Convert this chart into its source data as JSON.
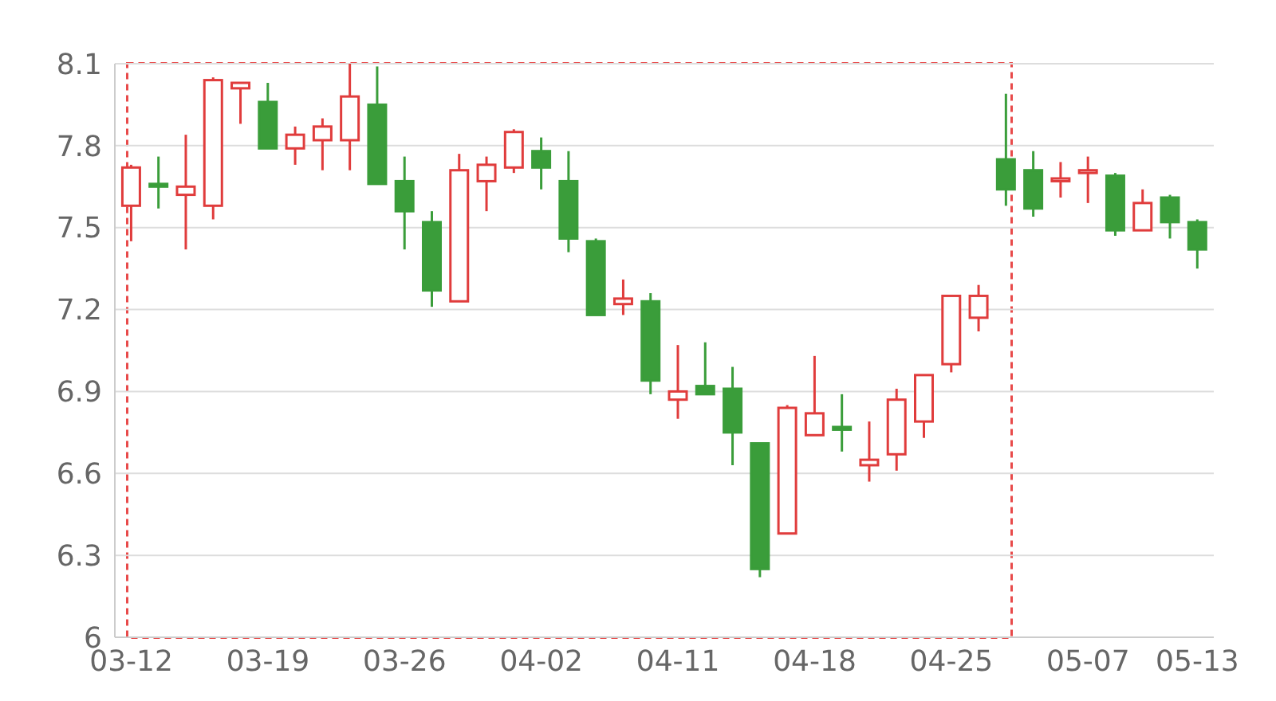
{
  "chart_data": {
    "type": "candlestick",
    "categories": [
      "03-12",
      null,
      null,
      null,
      null,
      "03-19",
      null,
      null,
      null,
      null,
      "03-26",
      null,
      null,
      null,
      null,
      "04-02",
      null,
      null,
      null,
      null,
      "04-11",
      null,
      null,
      null,
      null,
      "04-18",
      null,
      null,
      null,
      null,
      "04-25",
      null,
      null,
      null,
      null,
      "05-07",
      null,
      null,
      null,
      "05-13"
    ],
    "ohlc": [
      [
        7.58,
        7.73,
        7.45,
        7.72
      ],
      [
        7.66,
        7.76,
        7.57,
        7.65
      ],
      [
        7.62,
        7.84,
        7.42,
        7.65
      ],
      [
        7.58,
        8.05,
        7.53,
        8.04
      ],
      [
        8.01,
        8.03,
        7.88,
        8.03
      ],
      [
        7.96,
        8.03,
        7.79,
        7.79
      ],
      [
        7.79,
        7.87,
        7.73,
        7.84
      ],
      [
        7.82,
        7.9,
        7.71,
        7.87
      ],
      [
        7.82,
        8.1,
        7.71,
        7.98
      ],
      [
        7.95,
        8.09,
        7.66,
        7.66
      ],
      [
        7.67,
        7.76,
        7.42,
        7.56
      ],
      [
        7.52,
        7.56,
        7.21,
        7.27
      ],
      [
        7.23,
        7.77,
        7.23,
        7.71
      ],
      [
        7.67,
        7.76,
        7.56,
        7.73
      ],
      [
        7.72,
        7.86,
        7.7,
        7.85
      ],
      [
        7.78,
        7.83,
        7.64,
        7.72
      ],
      [
        7.67,
        7.78,
        7.41,
        7.46
      ],
      [
        7.45,
        7.46,
        7.18,
        7.18
      ],
      [
        7.22,
        7.31,
        7.18,
        7.24
      ],
      [
        7.23,
        7.26,
        6.89,
        6.94
      ],
      [
        6.87,
        7.07,
        6.8,
        6.9
      ],
      [
        6.92,
        7.08,
        6.89,
        6.89
      ],
      [
        6.91,
        6.99,
        6.63,
        6.75
      ],
      [
        6.71,
        6.71,
        6.22,
        6.25
      ],
      [
        6.38,
        6.85,
        6.38,
        6.84
      ],
      [
        6.74,
        7.03,
        6.74,
        6.82
      ],
      [
        6.77,
        6.89,
        6.68,
        6.76
      ],
      [
        6.63,
        6.79,
        6.57,
        6.65
      ],
      [
        6.67,
        6.91,
        6.61,
        6.87
      ],
      [
        6.79,
        6.96,
        6.73,
        6.96
      ],
      [
        7.0,
        7.25,
        6.97,
        7.25
      ],
      [
        7.17,
        7.29,
        7.12,
        7.25
      ],
      [
        7.75,
        7.99,
        7.58,
        7.64
      ],
      [
        7.71,
        7.78,
        7.54,
        7.57
      ],
      [
        7.67,
        7.74,
        7.61,
        7.68
      ],
      [
        7.7,
        7.76,
        7.59,
        7.71
      ],
      [
        7.69,
        7.7,
        7.47,
        7.49
      ],
      [
        7.49,
        7.64,
        7.49,
        7.59
      ],
      [
        7.61,
        7.62,
        7.46,
        7.52
      ],
      [
        7.52,
        7.53,
        7.35,
        7.42
      ]
    ],
    "colors": [
      "#e03c3c",
      "#3a9d3a",
      "#e03c3c",
      "#e03c3c",
      "#e03c3c",
      "#3a9d3a",
      "#e03c3c",
      "#e03c3c",
      "#e03c3c",
      "#3a9d3a",
      "#3a9d3a",
      "#3a9d3a",
      "#e03c3c",
      "#e03c3c",
      "#e03c3c",
      "#3a9d3a",
      "#3a9d3a",
      "#3a9d3a",
      "#e03c3c",
      "#3a9d3a",
      "#e03c3c",
      "#3a9d3a",
      "#3a9d3a",
      "#3a9d3a",
      "#e03c3c",
      "#e03c3c",
      "#3a9d3a",
      "#e03c3c",
      "#e03c3c",
      "#e03c3c",
      "#e03c3c",
      "#e03c3c",
      "#3a9d3a",
      "#3a9d3a",
      "#e03c3c",
      "#e03c3c",
      "#3a9d3a",
      "#e03c3c",
      "#3a9d3a",
      "#3a9d3a"
    ],
    "ylim": [
      6,
      8.1
    ],
    "yticks": [
      6,
      6.3,
      6.6,
      6.9,
      7.2,
      7.5,
      7.8,
      8.1
    ],
    "grid": "y"
  }
}
